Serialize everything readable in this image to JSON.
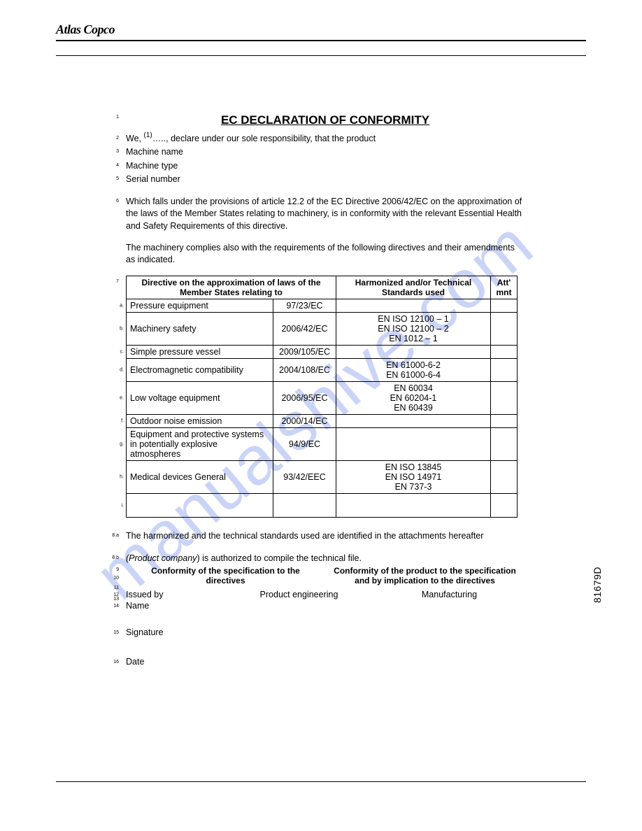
{
  "logo_text": "Atlas Copco",
  "title": "EC DECLARATION OF CONFORMITY",
  "intro": {
    "we_prefix": "We, ",
    "we_sup": "(1)",
    "we_rest": "….., declare under our sole responsibility, that the product",
    "line3": "Machine name",
    "line4": "Machine type",
    "line5": "Serial number"
  },
  "para6": "Which falls under the provisions of article 12.2 of the EC Directive 2006/42/EC on the approximation of the laws of the Member States relating to machinery, is in conformity with the relevant Essential Health and Safety Requirements of this directive.",
  "para_mid": "The machinery complies also with the requirements of the following directives and their amendments as indicated.",
  "table": {
    "head1": "Directive on the approximation of laws of the Member States relating to",
    "head2": "Harmonized and/or Technical Standards used",
    "head3": "Att' mnt",
    "rows": [
      {
        "idx": "a.",
        "name": "Pressure equipment",
        "dir": "97/23/EC",
        "std": ""
      },
      {
        "idx": "b.",
        "name": "Machinery safety",
        "dir": "2006/42/EC",
        "std": "EN ISO 12100 – 1\nEN ISO 12100 – 2\nEN 1012 – 1"
      },
      {
        "idx": "c.",
        "name": "Simple pressure vessel",
        "dir": "2009/105/EC",
        "std": ""
      },
      {
        "idx": "d.",
        "name": "Electromagnetic compatibility",
        "dir": "2004/108/EC",
        "std": "EN 61000-6-2\nEN 61000-6-4"
      },
      {
        "idx": "e.",
        "name": "Low voltage equipment",
        "dir": "2006/95/EC",
        "std": "EN 60034\nEN 60204-1\nEN 60439"
      },
      {
        "idx": "f.",
        "name": "Outdoor noise emission",
        "dir": "2000/14/EC",
        "std": ""
      },
      {
        "idx": "g.",
        "name": "Equipment and protective systems in potentially explosive atmospheres",
        "dir": "94/9/EC",
        "std": ""
      },
      {
        "idx": "h.",
        "name": "Medical devices General",
        "dir": "93/42/EEC",
        "std": "EN ISO 13845\nEN ISO 14971\nEN 737-3"
      },
      {
        "idx": "i.",
        "name": "",
        "dir": "",
        "std": ""
      }
    ]
  },
  "line8a": "The harmonized and the technical standards used are identified in the attachments hereafter",
  "line8b_pre": "(Product company",
  "line8b_post": ") is authorized to compile the technical file.",
  "conf1": "Conformity of the specification to the directives",
  "conf2": "Conformity of the product to the specification and by implication to the directives",
  "issued_label": "Issued by",
  "issued_c1": "Product engineering",
  "issued_c2": "Manufacturing",
  "name_label": "Name",
  "sig_label": "Signature",
  "date_label": "Date",
  "watermark": "manualshive.com",
  "sidecode": "81679D",
  "line_nums": {
    "n1": "1",
    "n2": "2",
    "n3": "3",
    "n4": "4",
    "n5": "5",
    "n6": "6",
    "n7": "7",
    "n8a": "8.a",
    "n8b": "8.b",
    "n9": "9",
    "n10": "10",
    "n11": "11",
    "n12": "12",
    "n13": "13",
    "n14": "14",
    "n15": "15",
    "n16": "16"
  }
}
